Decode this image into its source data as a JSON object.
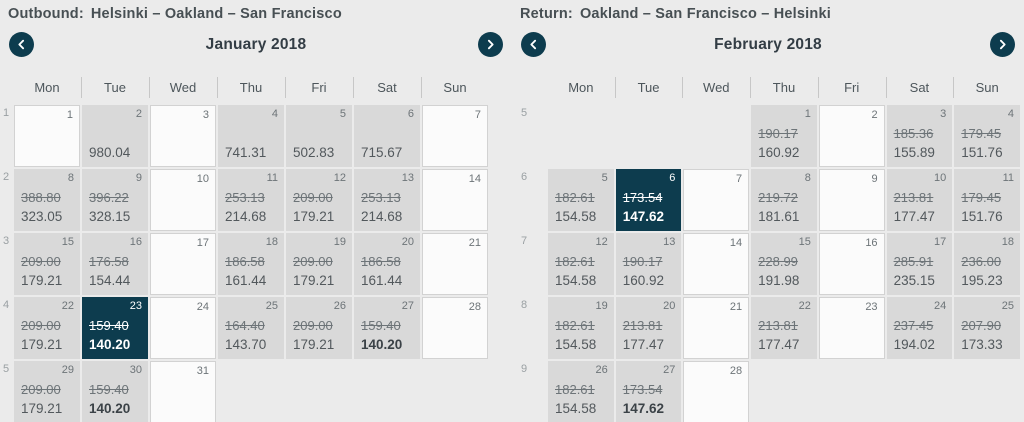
{
  "colors": {
    "accent_teal": "#0d3c4e",
    "cell_gray": "#d9d9d9",
    "page_background": "#ebebeb"
  },
  "calendars": [
    {
      "title_label": "Outbound:",
      "title_route": "Helsinki – Oakland – San Francisco",
      "month": "January 2018",
      "prev_icon": "chevron-left",
      "next_icon": "chevron-right",
      "day_headers": [
        "Mon",
        "Tue",
        "Wed",
        "Thu",
        "Fri",
        "Sat",
        "Sun"
      ],
      "weeks": [
        {
          "week_number": "1",
          "days": [
            {
              "day": "1"
            },
            {
              "day": "2",
              "price": "980.04"
            },
            {
              "day": "3"
            },
            {
              "day": "4",
              "price": "741.31"
            },
            {
              "day": "5",
              "price": "502.83"
            },
            {
              "day": "6",
              "price": "715.67"
            },
            {
              "day": "7"
            }
          ]
        },
        {
          "week_number": "2",
          "days": [
            {
              "day": "8",
              "old": "388.80",
              "price": "323.05"
            },
            {
              "day": "9",
              "old": "396.22",
              "price": "328.15"
            },
            {
              "day": "10"
            },
            {
              "day": "11",
              "old": "253.13",
              "price": "214.68"
            },
            {
              "day": "12",
              "old": "209.00",
              "price": "179.21"
            },
            {
              "day": "13",
              "old": "253.13",
              "price": "214.68"
            },
            {
              "day": "14"
            }
          ]
        },
        {
          "week_number": "3",
          "days": [
            {
              "day": "15",
              "old": "209.00",
              "price": "179.21"
            },
            {
              "day": "16",
              "old": "176.58",
              "price": "154.44"
            },
            {
              "day": "17"
            },
            {
              "day": "18",
              "old": "186.58",
              "price": "161.44"
            },
            {
              "day": "19",
              "old": "209.00",
              "price": "179.21"
            },
            {
              "day": "20",
              "old": "186.58",
              "price": "161.44"
            },
            {
              "day": "21"
            }
          ]
        },
        {
          "week_number": "4",
          "days": [
            {
              "day": "22",
              "old": "209.00",
              "price": "179.21"
            },
            {
              "day": "23",
              "old": "159.40",
              "price": "140.20",
              "selected": true,
              "lowest": true
            },
            {
              "day": "24"
            },
            {
              "day": "25",
              "old": "164.40",
              "price": "143.70"
            },
            {
              "day": "26",
              "old": "209.00",
              "price": "179.21"
            },
            {
              "day": "27",
              "old": "159.40",
              "price": "140.20",
              "lowest": true
            },
            {
              "day": "28"
            }
          ]
        },
        {
          "week_number": "5",
          "days": [
            {
              "day": "29",
              "old": "209.00",
              "price": "179.21"
            },
            {
              "day": "30",
              "old": "159.40",
              "price": "140.20",
              "lowest": true
            },
            {
              "day": "31"
            },
            null,
            null,
            null,
            null
          ]
        }
      ]
    },
    {
      "title_label": "Return:",
      "title_route": "Oakland – San Francisco – Helsinki",
      "month": "February 2018",
      "prev_icon": "chevron-left",
      "next_icon": "chevron-right",
      "day_headers": [
        "Mon",
        "Tue",
        "Wed",
        "Thu",
        "Fri",
        "Sat",
        "Sun"
      ],
      "weeks": [
        {
          "week_number": "5",
          "days": [
            null,
            null,
            null,
            {
              "day": "1",
              "old": "190.17",
              "price": "160.92"
            },
            {
              "day": "2"
            },
            {
              "day": "3",
              "old": "185.36",
              "price": "155.89"
            },
            {
              "day": "4",
              "old": "179.45",
              "price": "151.76"
            }
          ]
        },
        {
          "week_number": "6",
          "days": [
            {
              "day": "5",
              "old": "182.61",
              "price": "154.58"
            },
            {
              "day": "6",
              "old": "173.54",
              "price": "147.62",
              "selected": true,
              "lowest": true
            },
            {
              "day": "7"
            },
            {
              "day": "8",
              "old": "219.72",
              "price": "181.61"
            },
            {
              "day": "9"
            },
            {
              "day": "10",
              "old": "213.81",
              "price": "177.47"
            },
            {
              "day": "11",
              "old": "179.45",
              "price": "151.76"
            }
          ]
        },
        {
          "week_number": "7",
          "days": [
            {
              "day": "12",
              "old": "182.61",
              "price": "154.58"
            },
            {
              "day": "13",
              "old": "190.17",
              "price": "160.92"
            },
            {
              "day": "14"
            },
            {
              "day": "15",
              "old": "228.99",
              "price": "191.98"
            },
            {
              "day": "16"
            },
            {
              "day": "17",
              "old": "285.91",
              "price": "235.15"
            },
            {
              "day": "18",
              "old": "236.00",
              "price": "195.23"
            }
          ]
        },
        {
          "week_number": "8",
          "days": [
            {
              "day": "19",
              "old": "182.61",
              "price": "154.58"
            },
            {
              "day": "20",
              "old": "213.81",
              "price": "177.47"
            },
            {
              "day": "21"
            },
            {
              "day": "22",
              "old": "213.81",
              "price": "177.47"
            },
            {
              "day": "23"
            },
            {
              "day": "24",
              "old": "237.45",
              "price": "194.02"
            },
            {
              "day": "25",
              "old": "207.90",
              "price": "173.33"
            }
          ]
        },
        {
          "week_number": "9",
          "days": [
            {
              "day": "26",
              "old": "182.61",
              "price": "154.58"
            },
            {
              "day": "27",
              "old": "173.54",
              "price": "147.62",
              "lowest": true
            },
            {
              "day": "28"
            },
            null,
            null,
            null,
            null
          ]
        }
      ]
    }
  ]
}
